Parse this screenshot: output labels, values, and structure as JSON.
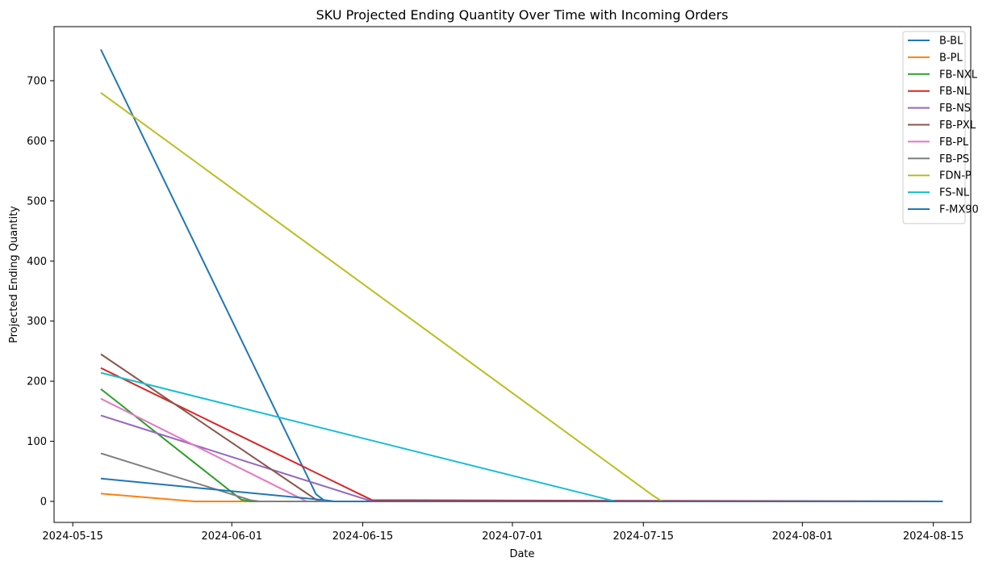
{
  "chart_data": {
    "type": "line",
    "title": "SKU Projected Ending Quantity Over Time with Incoming Orders",
    "xlabel": "Date",
    "ylabel": "Projected Ending Quantity",
    "xlim": [
      "2024-05-13",
      "2024-08-19"
    ],
    "ylim": [
      -35,
      790
    ],
    "x_ticks": [
      "2024-05-15",
      "2024-06-01",
      "2024-06-15",
      "2024-07-01",
      "2024-07-15",
      "2024-08-01",
      "2024-08-15"
    ],
    "y_ticks": [
      0,
      100,
      200,
      300,
      400,
      500,
      600,
      700
    ],
    "grid": false,
    "legend_position": "top-right",
    "series": [
      {
        "name": "B-BL",
        "color": "#1f77b4",
        "points": [
          [
            "2024-05-18",
            752
          ],
          [
            "2024-06-10",
            12
          ],
          [
            "2024-06-11",
            0
          ],
          [
            "2024-08-16",
            0
          ]
        ]
      },
      {
        "name": "B-PL",
        "color": "#ff7f0e",
        "points": [
          [
            "2024-05-18",
            13
          ],
          [
            "2024-05-28",
            0
          ],
          [
            "2024-08-16",
            0
          ]
        ]
      },
      {
        "name": "FB-NXL",
        "color": "#2ca02c",
        "points": [
          [
            "2024-05-18",
            187
          ],
          [
            "2024-06-02",
            3
          ],
          [
            "2024-06-03",
            0
          ],
          [
            "2024-08-16",
            0
          ]
        ]
      },
      {
        "name": "FB-NL",
        "color": "#d62728",
        "points": [
          [
            "2024-05-18",
            222
          ],
          [
            "2024-06-16",
            2
          ],
          [
            "2024-08-16",
            0
          ]
        ]
      },
      {
        "name": "FB-NS",
        "color": "#9467bd",
        "points": [
          [
            "2024-05-18",
            143
          ],
          [
            "2024-06-16",
            0
          ],
          [
            "2024-08-16",
            0
          ]
        ]
      },
      {
        "name": "FB-PXL",
        "color": "#8c564b",
        "points": [
          [
            "2024-05-18",
            245
          ],
          [
            "2024-06-10",
            3
          ],
          [
            "2024-06-11",
            0
          ],
          [
            "2024-08-16",
            0
          ]
        ]
      },
      {
        "name": "FB-PL",
        "color": "#e377c2",
        "points": [
          [
            "2024-05-18",
            171
          ],
          [
            "2024-06-09",
            0
          ],
          [
            "2024-08-16",
            0
          ]
        ]
      },
      {
        "name": "FB-PS",
        "color": "#7f7f7f",
        "points": [
          [
            "2024-05-18",
            80
          ],
          [
            "2024-06-03",
            2
          ],
          [
            "2024-06-04",
            0
          ],
          [
            "2024-08-16",
            0
          ]
        ]
      },
      {
        "name": "FDN-P",
        "color": "#bcbd22",
        "points": [
          [
            "2024-05-18",
            680
          ],
          [
            "2024-07-16",
            10
          ],
          [
            "2024-07-17",
            0
          ],
          [
            "2024-08-16",
            0
          ]
        ]
      },
      {
        "name": "FS-NL",
        "color": "#17becf",
        "points": [
          [
            "2024-05-18",
            214
          ],
          [
            "2024-07-12",
            0
          ],
          [
            "2024-08-16",
            0
          ]
        ]
      },
      {
        "name": "F-MX90",
        "color": "#1f77b4",
        "points": [
          [
            "2024-05-18",
            38
          ],
          [
            "2024-06-11",
            2
          ],
          [
            "2024-06-12",
            0
          ],
          [
            "2024-08-16",
            0
          ]
        ]
      }
    ]
  }
}
